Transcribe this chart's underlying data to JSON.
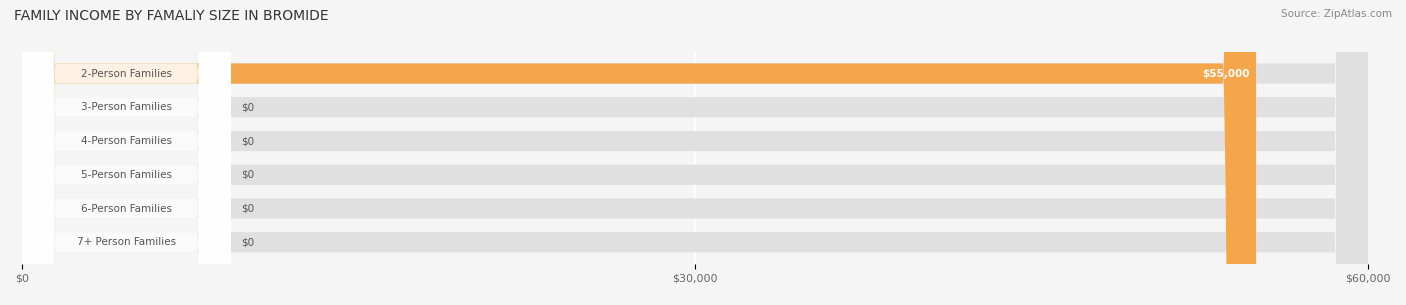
{
  "title": "FAMILY INCOME BY FAMALIY SIZE IN BROMIDE",
  "source": "Source: ZipAtlas.com",
  "categories": [
    "2-Person Families",
    "3-Person Families",
    "4-Person Families",
    "5-Person Families",
    "6-Person Families",
    "7+ Person Families"
  ],
  "values": [
    55000,
    0,
    0,
    0,
    0,
    0
  ],
  "bar_colors": [
    "#f5a54a",
    "#f0868a",
    "#a8c0e0",
    "#c9aed6",
    "#7ec8c0",
    "#a8b8e0"
  ],
  "label_colors": [
    "#f5a54a",
    "#f0868a",
    "#a8c0e0",
    "#c9aed6",
    "#7ec8c0",
    "#a8b8e0"
  ],
  "xlim": [
    0,
    60000
  ],
  "xticks": [
    0,
    30000,
    60000
  ],
  "xtick_labels": [
    "$0",
    "$30,000",
    "$60,000"
  ],
  "bar_height": 0.6,
  "background_color": "#f5f5f5",
  "bar_bg_color": "#e8e8e8",
  "title_fontsize": 10,
  "label_fontsize": 7.5,
  "value_label_55000": "$55,000",
  "value_label_0": "$0"
}
